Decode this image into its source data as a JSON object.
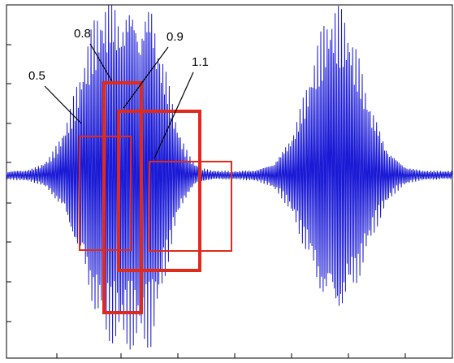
{
  "chart_data": {
    "type": "line",
    "title": "",
    "xlabel": "",
    "ylabel": "",
    "grid": false,
    "legend": "none",
    "series_color": "#1a1ad6",
    "box_color": "#e02a1a",
    "waveform": {
      "samples": 560,
      "bursts": [
        {
          "center": 0.23,
          "width": 0.085,
          "amplitude": 0.95
        },
        {
          "center": 0.32,
          "width": 0.06,
          "amplitude": 0.7
        },
        {
          "center": 0.74,
          "width": 0.085,
          "amplitude": 0.88
        }
      ]
    },
    "annotations": [
      {
        "label": "0.5",
        "scale": 0.5
      },
      {
        "label": "0.8",
        "scale": 0.8
      },
      {
        "label": "0.9",
        "scale": 0.9
      },
      {
        "label": "1.1",
        "scale": 1.1
      }
    ]
  }
}
